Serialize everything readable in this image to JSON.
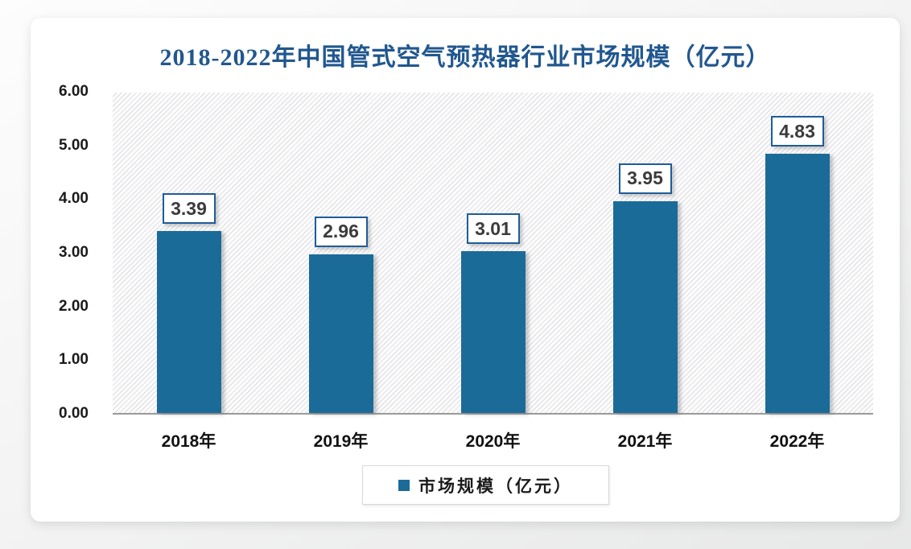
{
  "chart_data": {
    "type": "bar",
    "title": "2018-2022年中国管式空气预热器行业市场规模（亿元）",
    "categories": [
      "2018年",
      "2019年",
      "2020年",
      "2021年",
      "2022年"
    ],
    "values": [
      3.39,
      2.96,
      3.01,
      3.95,
      4.83
    ],
    "data_labels": [
      "3.39",
      "2.96",
      "3.01",
      "3.95",
      "4.83"
    ],
    "series_name": "市场规模（亿元）",
    "legend": [
      "市场规模（亿元）"
    ],
    "legend_position": "bottom",
    "xlabel": "",
    "ylabel": "",
    "ylim": [
      0,
      6
    ],
    "yticks": [
      "0.00",
      "1.00",
      "2.00",
      "3.00",
      "4.00",
      "5.00",
      "6.00"
    ],
    "grid": false,
    "plot_background": "diagonal-hatch",
    "colors": {
      "bar": "#1b6b99",
      "title": "#21578f",
      "value_label_border": "#1f5c99",
      "value_label_text": "#3b3b3b",
      "axis_line": "#9a9a9a",
      "tick_text": "#1a1a1a",
      "legend_marker": "#1b6b99"
    }
  }
}
